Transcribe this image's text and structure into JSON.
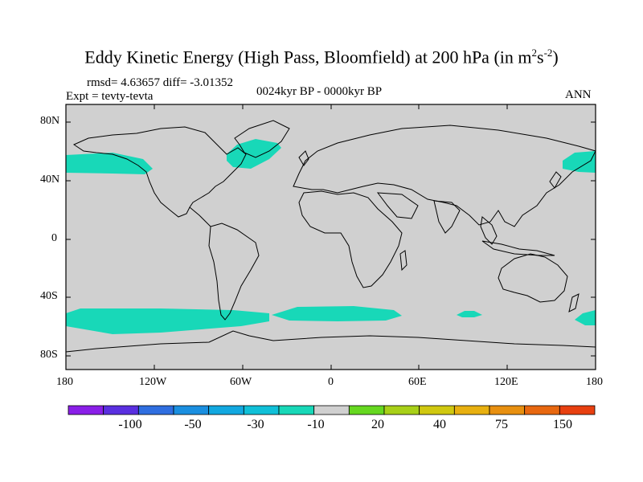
{
  "title_main": "Eddy Kinetic Energy (High Pass, Bloomfield) at 200 hPa (in m",
  "title_sup1": "2",
  "title_mid": "s",
  "title_sup2": "-2",
  "title_close": ")",
  "stats": "rmsd= 4.63657 diff= -3.01352",
  "experiment": "Expt = tevty-tevta",
  "period": "0024kyr BP - 0000kyr BP",
  "season": "ANN",
  "lat_ticks": [
    "80N",
    "40N",
    "0",
    "40S",
    "80S"
  ],
  "lon_ticks": [
    "180",
    "120W",
    "60W",
    "0",
    "60E",
    "120E",
    "180"
  ],
  "colorbar": {
    "labels": [
      "-100",
      "-50",
      "-30",
      "-10",
      "20",
      "40",
      "75",
      "150"
    ],
    "colors": [
      "#8a1fe8",
      "#5a2fe0",
      "#2f6ee0",
      "#1a8fe0",
      "#12a8e0",
      "#10c0d8",
      "#18d8b8",
      "#d0d0d0",
      "#66d820",
      "#a8d018",
      "#d0c810",
      "#e8b010",
      "#e89010",
      "#e86810",
      "#e84010"
    ]
  },
  "map": {
    "ocean_color": "#d0d0d0",
    "anomaly_color": "#18d8b8"
  }
}
